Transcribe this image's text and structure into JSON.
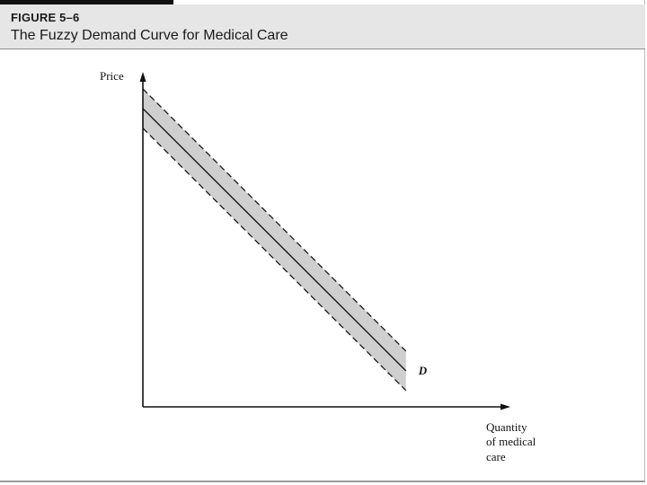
{
  "figure": {
    "label": "FIGURE 5–6",
    "title": "The Fuzzy Demand Curve for Medical Care"
  },
  "chart_data": {
    "type": "line",
    "title": "The Fuzzy Demand Curve for Medical Care",
    "ylabel": "Price",
    "xlabel_lines": [
      "Quantity",
      "of medical",
      "care"
    ],
    "curve_label": "D",
    "xlim": [
      0,
      10
    ],
    "ylim": [
      0,
      10
    ],
    "grid": false,
    "series": [
      {
        "name": "D",
        "x": [
          0,
          7.3
        ],
        "y": [
          9.1,
          1.1
        ]
      }
    ],
    "band_half_width": 0.6,
    "colors": {
      "band": "#cfcfcf",
      "line": "#1a1a1a"
    }
  }
}
